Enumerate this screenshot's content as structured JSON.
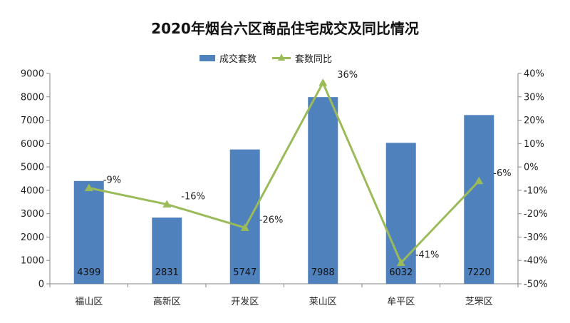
{
  "chart_data": {
    "type": "bar",
    "title": "2020年烟台六区商品住宅成交及同比情况",
    "categories": [
      "福山区",
      "高新区",
      "开发区",
      "莱山区",
      "牟平区",
      "芝罘区"
    ],
    "series": [
      {
        "name": "成交套数",
        "type": "bar",
        "axis": "left",
        "values": [
          4399,
          2831,
          5747,
          7988,
          6032,
          7220
        ],
        "labels": [
          "4399",
          "2831",
          "5747",
          "7988",
          "6032",
          "7220"
        ],
        "color": "#4F81BD"
      },
      {
        "name": "套数同比",
        "type": "line",
        "axis": "right",
        "values": [
          -9,
          -16,
          -26,
          36,
          -41,
          -6
        ],
        "labels": [
          "-9%",
          "-16%",
          "-26%",
          "36%",
          "-41%",
          "-6%"
        ],
        "color": "#9BBB59"
      }
    ],
    "y_left": {
      "min": 0,
      "max": 9000,
      "ticks": [
        0,
        1000,
        2000,
        3000,
        4000,
        5000,
        6000,
        7000,
        8000,
        9000
      ],
      "tick_labels": [
        "0",
        "1000",
        "2000",
        "3000",
        "4000",
        "5000",
        "6000",
        "7000",
        "8000",
        "9000"
      ]
    },
    "y_right": {
      "min": -50,
      "max": 40,
      "ticks": [
        -50,
        -40,
        -30,
        -20,
        -10,
        0,
        10,
        20,
        30,
        40
      ],
      "tick_labels": [
        "-50%",
        "-40%",
        "-30%",
        "-20%",
        "-10%",
        "0%",
        "10%",
        "20%",
        "30%",
        "40%"
      ]
    },
    "grid": false,
    "legend_position": "top"
  },
  "colors": {
    "axis": "#868686",
    "text": "#222222",
    "bar_label": "#111111"
  }
}
